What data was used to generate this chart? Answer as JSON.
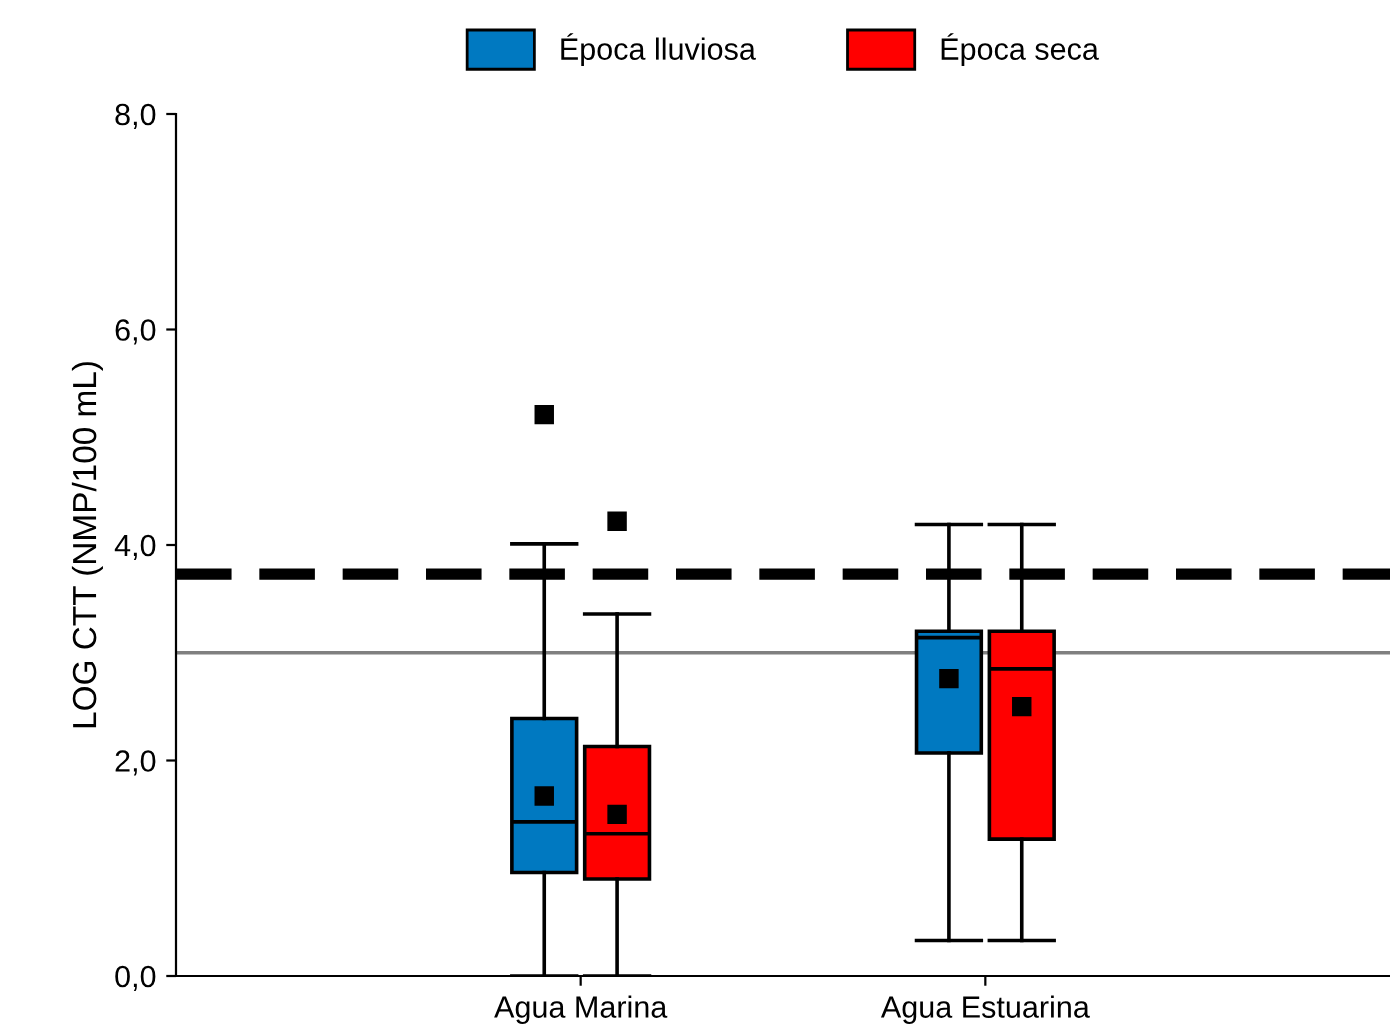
{
  "chart_data": {
    "type": "box",
    "ylabel": "LOG CTT (NMP/100 mL)",
    "categories": [
      "Agua Marina",
      "Agua Estuarina"
    ],
    "ylim": [
      0,
      8
    ],
    "yticks": [
      {
        "value": 0,
        "label": "0,0"
      },
      {
        "value": 2,
        "label": "2,0"
      },
      {
        "value": 4,
        "label": "4,0"
      },
      {
        "value": 6,
        "label": "6,0"
      },
      {
        "value": 8,
        "label": "8,0"
      }
    ],
    "series": [
      {
        "name": "Época lluviosa",
        "color": "#0079c1",
        "boxes": [
          {
            "low": 0,
            "q1": 0.96,
            "median": 1.43,
            "q3": 2.39,
            "high": 4.01,
            "mean": 1.67,
            "outliers": [
              5.21
            ]
          },
          {
            "low": 0.33,
            "q1": 2.07,
            "median": 3.14,
            "q3": 3.2,
            "high": 4.19,
            "mean": 2.76
          }
        ]
      },
      {
        "name": "Época seca",
        "color": "#ff0000",
        "boxes": [
          {
            "low": 0,
            "q1": 0.9,
            "median": 1.32,
            "q3": 2.13,
            "high": 3.36,
            "mean": 1.5,
            "outliers": [
              4.22
            ]
          },
          {
            "low": 0.33,
            "q1": 1.27,
            "median": 2.85,
            "q3": 3.2,
            "high": 4.19,
            "mean": 2.5
          }
        ]
      }
    ],
    "ref_lines": [
      {
        "axis": "y",
        "value": 3.73,
        "color": "#000000",
        "line_style": "dashed"
      },
      {
        "axis": "y",
        "value": 3.0,
        "color": "#808080",
        "line_style": "solid"
      }
    ],
    "marker": "square",
    "grid": false,
    "legend": "top"
  }
}
